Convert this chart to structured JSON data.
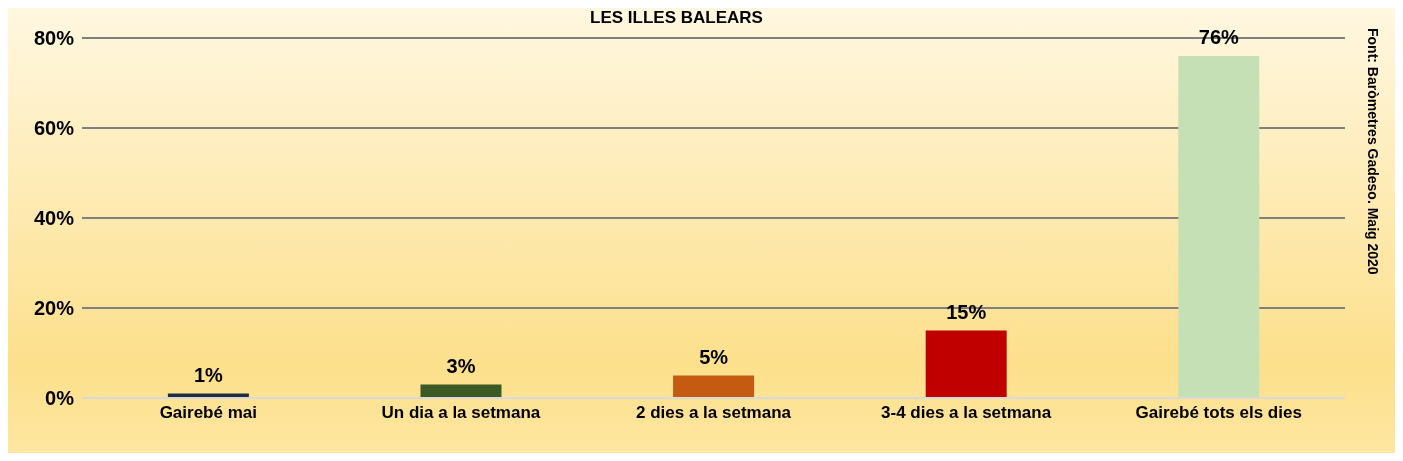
{
  "chart_data": {
    "type": "bar",
    "title": "LES ILLES BALEARS",
    "categories": [
      "Gairebé mai",
      "Un dia a la setmana",
      "2 dies a la setmana",
      "3-4 dies a la setmana",
      "Gairebé tots els dies"
    ],
    "values": [
      1,
      3,
      5,
      15,
      76
    ],
    "colors": [
      "#1f2b3f",
      "#3b5a24",
      "#c55a11",
      "#c00000",
      "#c5e0b4"
    ],
    "value_labels": [
      "1%",
      "3%",
      "5%",
      "15%",
      "76%"
    ],
    "ylim": [
      0,
      80
    ],
    "yticks": [
      {
        "value": 0,
        "label": "0%"
      },
      {
        "value": 20,
        "label": "20%"
      },
      {
        "value": 40,
        "label": "40%"
      },
      {
        "value": 60,
        "label": "60%"
      },
      {
        "value": 80,
        "label": "80%"
      }
    ],
    "grid": "y",
    "legend": false,
    "annotations": [
      "Font: Baròmetres Gadeso. Maig 2020"
    ]
  }
}
